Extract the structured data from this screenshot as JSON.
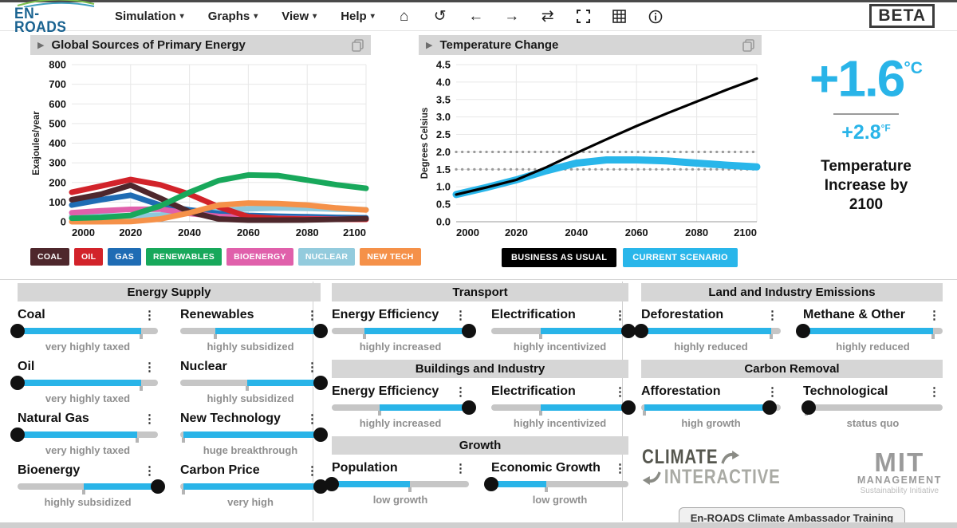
{
  "toolbar": {
    "logo_text": "EN-ROADS",
    "menus": [
      "Simulation",
      "Graphs",
      "View",
      "Help"
    ],
    "icons": [
      {
        "name": "home",
        "glyph": "⌂"
      },
      {
        "name": "undo",
        "glyph": "↺"
      },
      {
        "name": "back",
        "glyph": "←"
      },
      {
        "name": "forward",
        "glyph": "→"
      },
      {
        "name": "compare",
        "glyph": "⇄"
      },
      {
        "name": "fullscreen",
        "glyph": ""
      },
      {
        "name": "table",
        "glyph": ""
      },
      {
        "name": "info",
        "glyph": ""
      }
    ],
    "beta_label": "BETA"
  },
  "charts": {
    "left_title": "Global Sources of Primary Energy",
    "right_title": "Temperature Change"
  },
  "legends": {
    "energy": [
      {
        "label": "COAL",
        "color": "#4e272c"
      },
      {
        "label": "OIL",
        "color": "#d2232a"
      },
      {
        "label": "GAS",
        "color": "#1f6cb4"
      },
      {
        "label": "RENEWABLES",
        "color": "#18a85b"
      },
      {
        "label": "BIOENERGY",
        "color": "#e060ab"
      },
      {
        "label": "NUCLEAR",
        "color": "#93cbdd"
      },
      {
        "label": "NEW TECH",
        "color": "#f59149"
      }
    ],
    "temperature": [
      {
        "label": "BUSINESS AS USUAL",
        "color": "#000000"
      },
      {
        "label": "CURRENT SCENARIO",
        "color": "#29b6ea"
      }
    ]
  },
  "temperature_panel": {
    "celsius": "+1.6",
    "celsius_unit": "°C",
    "fahrenheit": "+2.8",
    "fahrenheit_unit": "°F",
    "caption": "Temperature Increase by 2100"
  },
  "chart_data": [
    {
      "type": "line",
      "title": "Global Sources of Primary Energy",
      "xlabel": "",
      "ylabel": "Exajoules/year",
      "x": [
        2000,
        2010,
        2020,
        2030,
        2040,
        2050,
        2060,
        2070,
        2080,
        2090,
        2100
      ],
      "xticks": [
        "2000",
        "2020",
        "2040",
        "2060",
        "2080",
        "2100"
      ],
      "ylim": [
        0,
        800
      ],
      "yticks": [
        "0",
        "100",
        "200",
        "300",
        "400",
        "500",
        "600",
        "700",
        "800"
      ],
      "grid": true,
      "stroke_width": 7,
      "series": [
        {
          "name": "NUCLEAR",
          "color": "#8ec9dc",
          "values": [
            28,
            29,
            30,
            34,
            44,
            56,
            66,
            70,
            68,
            64,
            61
          ]
        },
        {
          "name": "GAS",
          "color": "#1f6cb4",
          "values": [
            85,
            112,
            135,
            85,
            60,
            42,
            32,
            28,
            25,
            22,
            20
          ]
        },
        {
          "name": "BIOENERGY",
          "color": "#e060ab",
          "values": [
            46,
            56,
            63,
            64,
            42,
            27,
            21,
            17,
            15,
            13,
            12
          ]
        },
        {
          "name": "OIL",
          "color": "#d2232a",
          "values": [
            150,
            182,
            215,
            188,
            140,
            75,
            25,
            16,
            13,
            12,
            12
          ]
        },
        {
          "name": "COAL",
          "color": "#4e272c",
          "values": [
            112,
            140,
            186,
            120,
            50,
            14,
            8,
            8,
            9,
            12,
            16
          ]
        },
        {
          "name": "NEW TECH",
          "color": "#f59149",
          "values": [
            0,
            0,
            1,
            14,
            45,
            85,
            95,
            92,
            85,
            70,
            60
          ]
        },
        {
          "name": "RENEWABLES",
          "color": "#18a85b",
          "values": [
            18,
            22,
            32,
            80,
            150,
            210,
            238,
            235,
            212,
            188,
            170
          ]
        }
      ]
    },
    {
      "type": "line",
      "title": "Temperature Change",
      "xlabel": "",
      "ylabel": "Degrees Celsius",
      "x": [
        2000,
        2010,
        2020,
        2030,
        2040,
        2050,
        2060,
        2070,
        2080,
        2090,
        2100
      ],
      "xticks": [
        "2000",
        "2020",
        "2040",
        "2060",
        "2080",
        "2100"
      ],
      "ylim": [
        0,
        4.5
      ],
      "yticks": [
        "0.0",
        "0.5",
        "1.0",
        "1.5",
        "2.0",
        "2.5",
        "3.0",
        "3.5",
        "4.0",
        "4.5"
      ],
      "grid": true,
      "ref_lines": [
        1.5,
        2.0
      ],
      "series": [
        {
          "name": "CURRENT SCENARIO",
          "color": "#29b6ea",
          "width": 9,
          "values": [
            0.78,
            0.98,
            1.2,
            1.46,
            1.68,
            1.77,
            1.77,
            1.74,
            1.68,
            1.62,
            1.57
          ]
        },
        {
          "name": "BUSINESS AS USUAL",
          "color": "#000000",
          "width": 3.2,
          "values": [
            0.78,
            0.98,
            1.2,
            1.56,
            1.97,
            2.36,
            2.74,
            3.1,
            3.44,
            3.78,
            4.1
          ]
        }
      ]
    }
  ],
  "panels": [
    {
      "title": "Energy Supply",
      "sliders": [
        {
          "name": "Coal",
          "status": "very highly taxed",
          "value": 0,
          "default": 88
        },
        {
          "name": "Renewables",
          "status": "highly subsidized",
          "value": 100,
          "default": 25
        },
        {
          "name": "Oil",
          "status": "very highly taxed",
          "value": 0,
          "default": 88
        },
        {
          "name": "Nuclear",
          "status": "highly subsidized",
          "value": 100,
          "default": 48
        },
        {
          "name": "Natural Gas",
          "status": "very highly taxed",
          "value": 0,
          "default": 85
        },
        {
          "name": "New Technology",
          "status": "huge breakthrough",
          "value": 100,
          "default": 2
        },
        {
          "name": "Bioenergy",
          "status": "highly subsidized",
          "value": 100,
          "default": 47
        },
        {
          "name": "Carbon Price",
          "status": "very high",
          "value": 100,
          "default": 2
        }
      ]
    },
    {
      "title": "Transport",
      "sliders": [
        {
          "name": "Energy Efficiency",
          "status": "highly increased",
          "value": 100,
          "default": 24
        },
        {
          "name": "Electrification",
          "status": "highly incentivized",
          "value": 100,
          "default": 36
        }
      ]
    },
    {
      "title": "Buildings and Industry",
      "sliders": [
        {
          "name": "Energy Efficiency",
          "status": "highly increased",
          "value": 100,
          "default": 35
        },
        {
          "name": "Electrification",
          "status": "highly incentivized",
          "value": 100,
          "default": 36
        }
      ]
    },
    {
      "title": "Growth",
      "sliders": [
        {
          "name": "Population",
          "status": "low growth",
          "value": 0,
          "default": 57
        },
        {
          "name": "Economic Growth",
          "status": "low growth",
          "value": 0,
          "default": 40
        }
      ]
    },
    {
      "title": "Land and Industry Emissions",
      "sliders": [
        {
          "name": "Deforestation",
          "status": "highly reduced",
          "value": 0,
          "default": 93
        },
        {
          "name": "Methane & Other",
          "status": "highly reduced",
          "value": 0,
          "default": 93
        }
      ]
    },
    {
      "title": "Carbon Removal",
      "sliders": [
        {
          "name": "Afforestation",
          "status": "high growth",
          "value": 92,
          "default": 2
        },
        {
          "name": "Technological",
          "status": "status quo",
          "value": 4,
          "default": 2
        }
      ]
    }
  ],
  "footer": {
    "ci_top": "CLIMATE",
    "ci_bottom": "INTERACTIVE",
    "mit_top": "MIT",
    "mit_mid": "MANAGEMENT",
    "mit_bottom": "Sustainability Initiative",
    "training_button": "En-ROADS Climate Ambassador Training"
  }
}
